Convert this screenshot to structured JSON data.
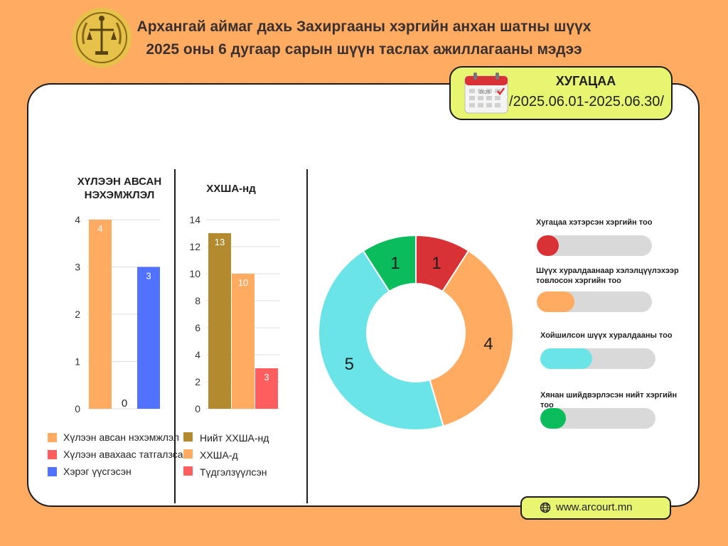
{
  "header": {
    "title_line1": "Архангай аймаг дахь Захиргааны хэргийн анхан шатны шүүх",
    "title_line2": "2025 оны 6 дугаар сарын шүүн таслах ажиллагааны мэдээ"
  },
  "period": {
    "label": "ХУГАЦАА",
    "range": "/2025.06.01-2025.06.30/",
    "calendar_tag": "2025"
  },
  "website": {
    "url": "www.arcourt.mn",
    "icon": "globe-icon"
  },
  "colors": {
    "background": "#ffab61",
    "panel": "#ffffff",
    "highlight": "#e7f571",
    "orange": "#ffab61",
    "red": "#ff5e5e",
    "blue": "#5171ff",
    "gold": "#b38a2e",
    "cyan": "#6be4e8",
    "green": "#0bbc5c",
    "darkred": "#d93236"
  },
  "chart_data": [
    {
      "type": "bar",
      "title": "ХҮЛЭЭН АВСАН НЭХЭМЖЛЭЛ",
      "ylim": [
        0,
        4
      ],
      "yticks": [
        0,
        1,
        2,
        3,
        4
      ],
      "grid": true,
      "series": [
        {
          "name": "Хүлээн авсан нэхэмжлэл",
          "value": 4,
          "color": "#ffab61"
        },
        {
          "name": "Хүлээн авахаас татгалзсан",
          "value": 0,
          "color": "#ff5e5e"
        },
        {
          "name": "Хэрэг үүсгэсэн",
          "value": 3,
          "color": "#5171ff"
        }
      ]
    },
    {
      "type": "bar",
      "title": "ХХША-нд",
      "ylim": [
        0,
        14
      ],
      "yticks": [
        0,
        2,
        4,
        6,
        8,
        10,
        12,
        14
      ],
      "grid": true,
      "series": [
        {
          "name": "Нийт ХХША-нд",
          "value": 13,
          "color": "#b38a2e"
        },
        {
          "name": "ХХША-д",
          "value": 10,
          "color": "#ffab61"
        },
        {
          "name": "Түдгэлзүүлсэн",
          "value": 3,
          "color": "#ff5e5e"
        }
      ]
    },
    {
      "type": "pie",
      "donut": true,
      "slices": [
        {
          "value": 1,
          "color": "#d93236"
        },
        {
          "value": 4,
          "color": "#ffab61"
        },
        {
          "value": 5,
          "color": "#6be4e8"
        },
        {
          "value": 1,
          "color": "#0bbc5c"
        }
      ]
    }
  ],
  "progress": [
    {
      "label": "Хугацаа хэтэрсэн хэргийн тоо",
      "fraction": 0.19,
      "color": "#d93236"
    },
    {
      "label": "Шүүх хуралдаанаар хэлэлцүүлэхээр товлосон хэргийн тоо",
      "fraction": 0.33,
      "color": "#ffab61"
    },
    {
      "label": "Хойшилсон шүүх хуралдааны тоо",
      "fraction": 0.45,
      "color": "#6be4e8"
    },
    {
      "label": "Хянан шийдвэрлэсэн нийт хэргийн тоо",
      "fraction": 0.22,
      "color": "#0bbc5c"
    }
  ]
}
